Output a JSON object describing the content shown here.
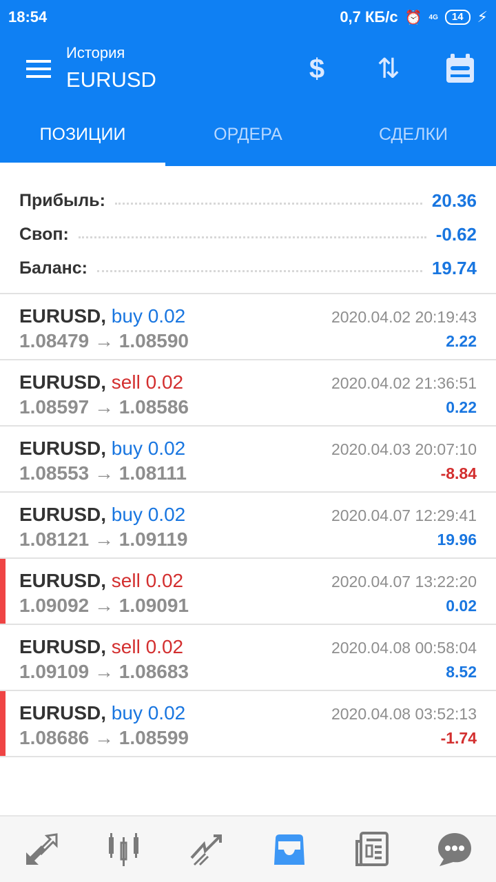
{
  "status": {
    "time": "18:54",
    "speed": "0,7 КБ/с",
    "network": "4G",
    "battery": "14"
  },
  "header": {
    "subtitle": "История",
    "title": "EURUSD"
  },
  "tabs": [
    {
      "label": "ПОЗИЦИИ",
      "active": true
    },
    {
      "label": "ОРДЕРА"
    },
    {
      "label": "СДЕЛКИ"
    }
  ],
  "summary": [
    {
      "label": "Прибыль:",
      "value": "20.36"
    },
    {
      "label": "Своп:",
      "value": "-0.62"
    },
    {
      "label": "Баланс:",
      "value": "19.74"
    }
  ],
  "positions": [
    {
      "symbol": "EURUSD,",
      "side": "buy 0.02",
      "type": "buy",
      "prices": "1.08479 → 1.08590",
      "time": "2020.04.02 20:19:43",
      "profit": "2.22",
      "marked": false
    },
    {
      "symbol": "EURUSD,",
      "side": "sell 0.02",
      "type": "sell",
      "prices": "1.08597 → 1.08586",
      "time": "2020.04.02 21:36:51",
      "profit": "0.22",
      "marked": false
    },
    {
      "symbol": "EURUSD,",
      "side": "buy 0.02",
      "type": "buy",
      "prices": "1.08553 → 1.08111",
      "time": "2020.04.03 20:07:10",
      "profit": "-8.84",
      "marked": false
    },
    {
      "symbol": "EURUSD,",
      "side": "buy 0.02",
      "type": "buy",
      "prices": "1.08121 → 1.09119",
      "time": "2020.04.07 12:29:41",
      "profit": "19.96",
      "marked": false
    },
    {
      "symbol": "EURUSD,",
      "side": "sell 0.02",
      "type": "sell",
      "prices": "1.09092 → 1.09091",
      "time": "2020.04.07 13:22:20",
      "profit": "0.02",
      "marked": true
    },
    {
      "symbol": "EURUSD,",
      "side": "sell 0.02",
      "type": "sell",
      "prices": "1.09109 → 1.08683",
      "time": "2020.04.08 00:58:04",
      "profit": "8.52",
      "marked": false
    },
    {
      "symbol": "EURUSD,",
      "side": "buy 0.02",
      "type": "buy",
      "prices": "1.08686 → 1.08599",
      "time": "2020.04.08 03:52:13",
      "profit": "-1.74",
      "marked": true
    }
  ],
  "nav": [
    "quotes-icon",
    "chart-icon",
    "trade-icon",
    "history-icon",
    "news-icon",
    "chat-icon"
  ],
  "colors": {
    "primary": "#0f80f3",
    "buy": "#1976e0",
    "sell": "#d32f2f",
    "marker": "#ef4444",
    "nav_active": "#3d97f5",
    "nav_inactive": "#7a7a7a"
  }
}
